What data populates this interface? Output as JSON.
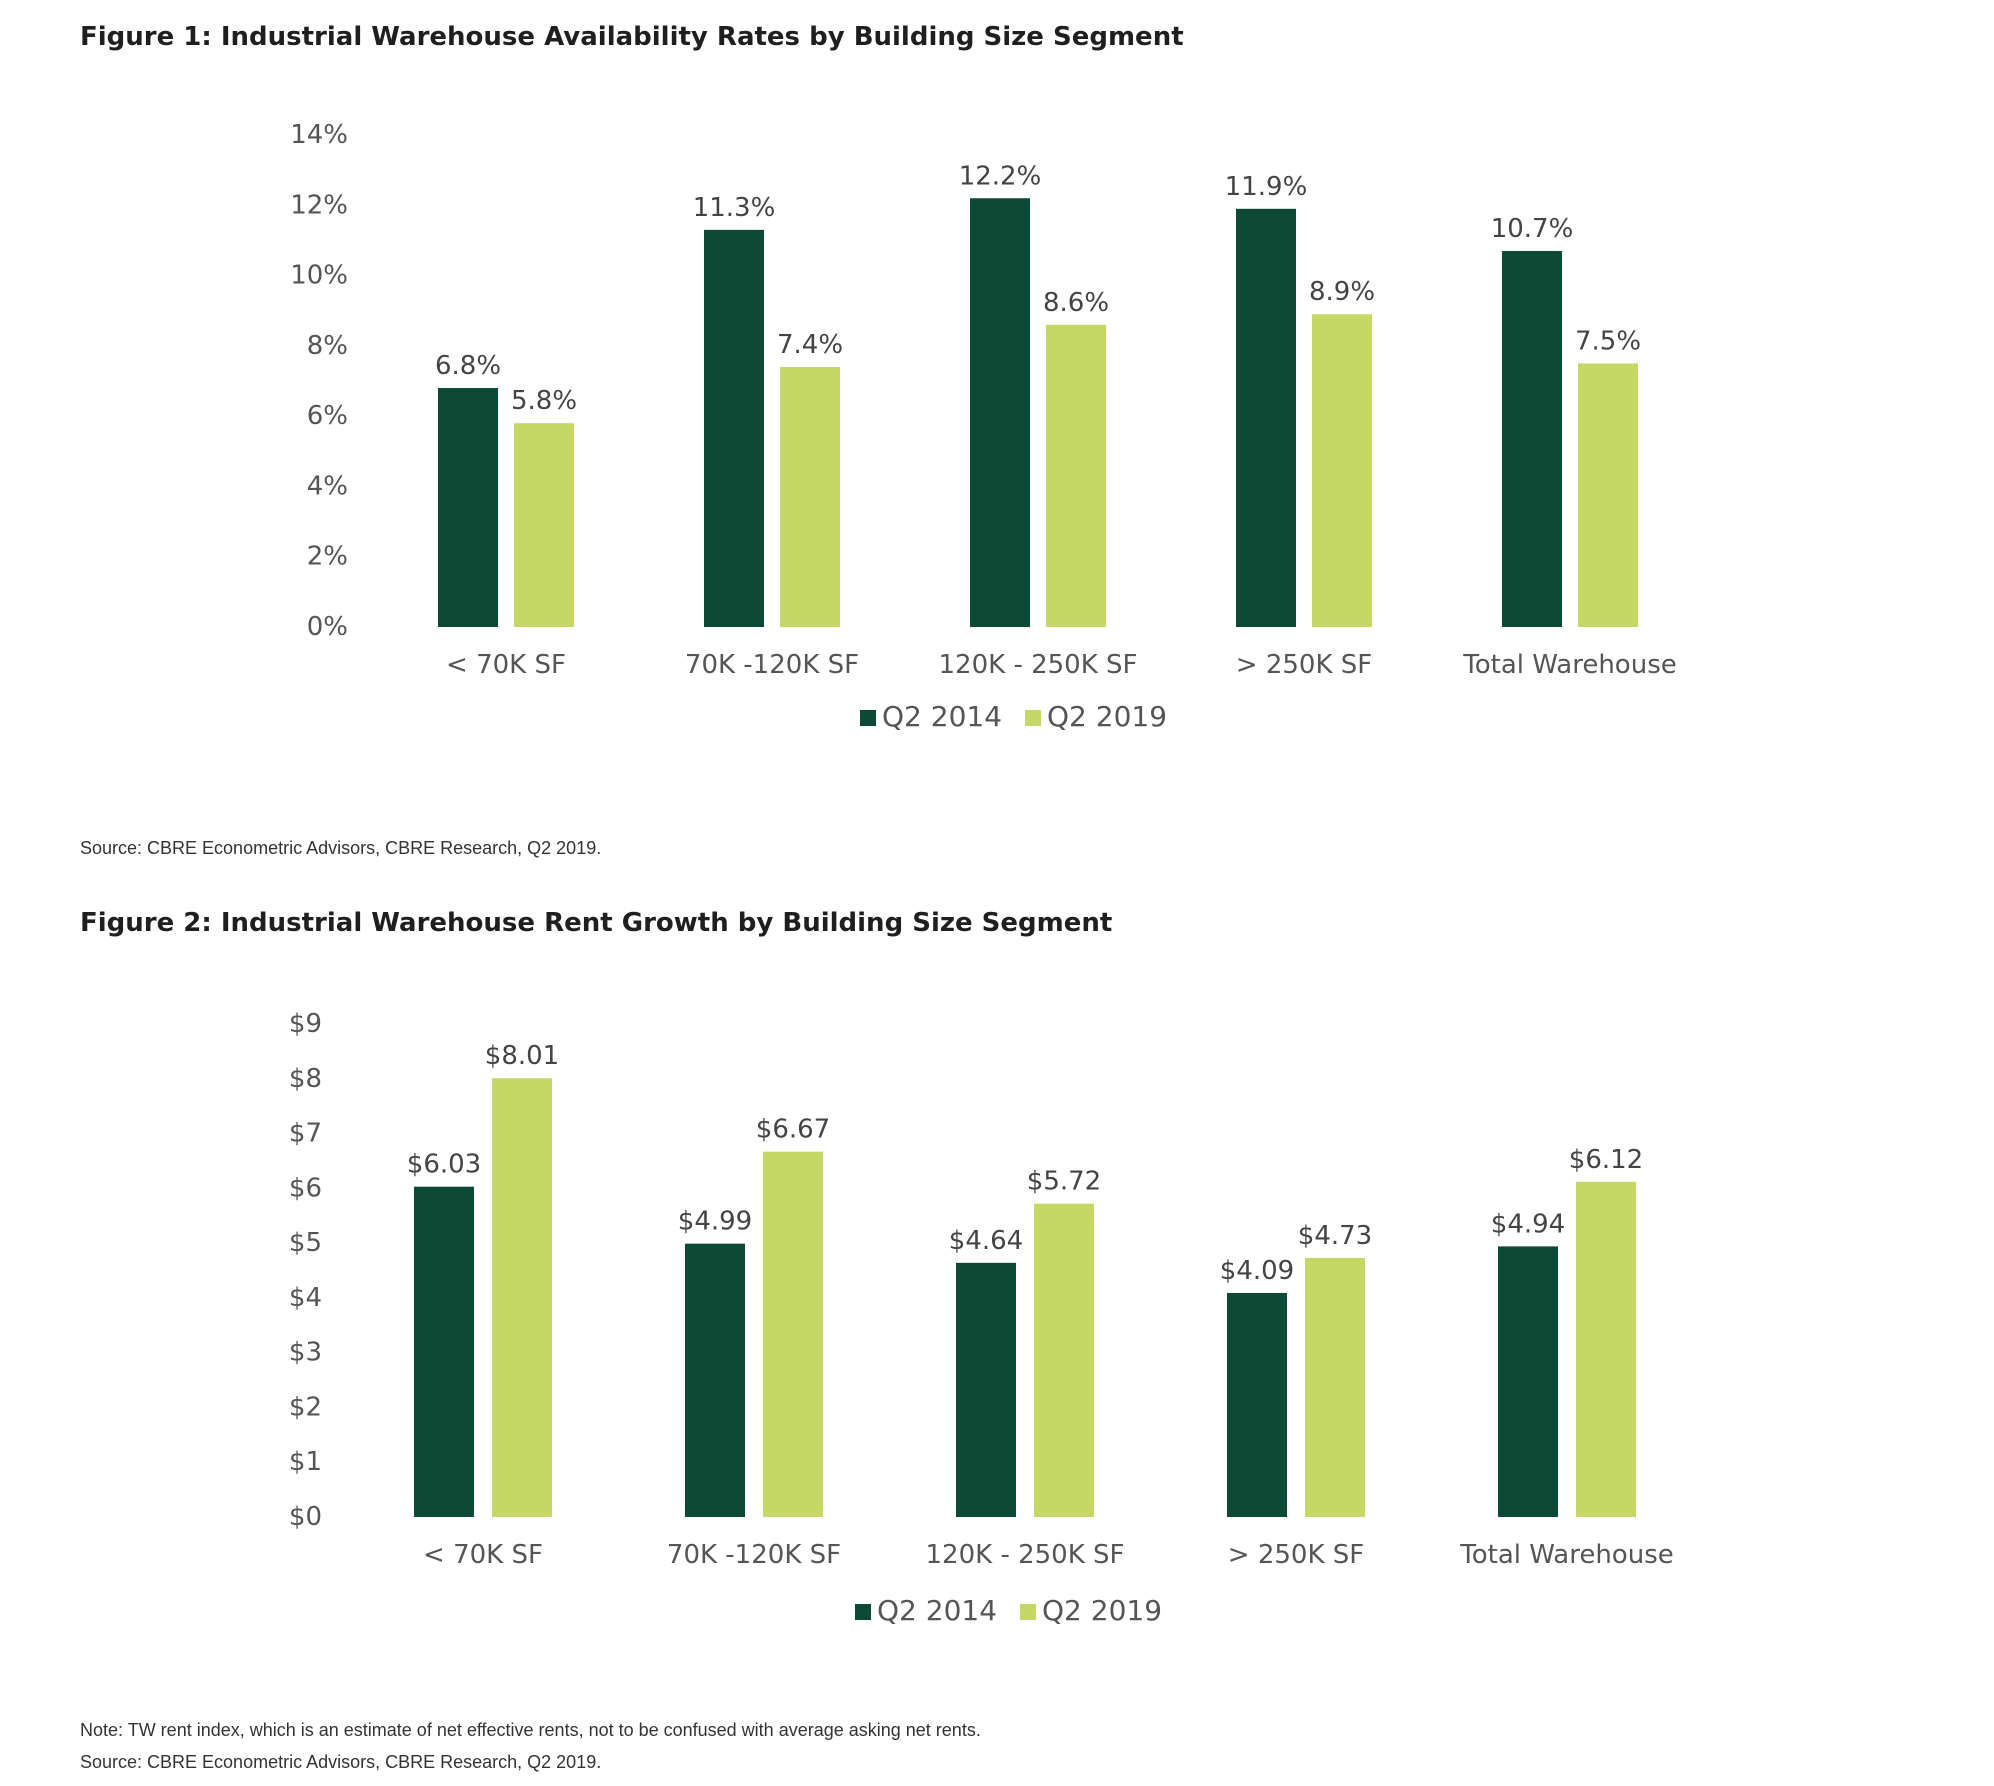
{
  "figures": [
    {
      "title": "Figure 1: Industrial Warehouse Availability Rates by Building Size Segment",
      "notes": [
        "Source: CBRE Econometric Advisors, CBRE Research, Q2 2019."
      ]
    },
    {
      "title": "Figure 2: Industrial Warehouse Rent Growth by Building Size Segment",
      "notes": [
        "Note: TW rent index, which is an estimate of net effective rents, not to be confused with average asking net rents.",
        "Source: CBRE Econometric Advisors, CBRE Research, Q2 2019."
      ]
    }
  ],
  "colors": {
    "q2_2014": "#0d4a35",
    "q2_2019": "#c5d866"
  },
  "chart_data": [
    {
      "type": "bar",
      "title": "Figure 1: Industrial Warehouse Availability Rates by Building Size Segment",
      "categories": [
        "< 70K SF",
        "70K -120K SF",
        "120K - 250K SF",
        "> 250K SF",
        "Total Warehouse"
      ],
      "series": [
        {
          "name": "Q2 2014",
          "values": [
            6.8,
            11.3,
            12.2,
            11.9,
            10.7
          ],
          "labels": [
            "6.8%",
            "11.3%",
            "12.2%",
            "11.9%",
            "10.7%"
          ]
        },
        {
          "name": "Q2 2019",
          "values": [
            5.8,
            7.4,
            8.6,
            8.9,
            7.5
          ],
          "labels": [
            "5.8%",
            "7.4%",
            "8.6%",
            "8.9%",
            "7.5%"
          ]
        }
      ],
      "yticks": [
        "0%",
        "2%",
        "4%",
        "6%",
        "8%",
        "10%",
        "12%",
        "14%"
      ],
      "ylim": [
        0,
        14
      ],
      "ystep": 2,
      "grid": false,
      "legend": "bottom-center"
    },
    {
      "type": "bar",
      "title": "Figure 2: Industrial Warehouse Rent Growth by Building Size Segment",
      "categories": [
        "< 70K SF",
        "70K -120K SF",
        "120K - 250K SF",
        "> 250K SF",
        "Total Warehouse"
      ],
      "series": [
        {
          "name": "Q2 2014",
          "values": [
            6.03,
            4.99,
            4.64,
            4.09,
            4.94
          ],
          "labels": [
            "$6.03",
            "$4.99",
            "$4.64",
            "$4.09",
            "$4.94"
          ]
        },
        {
          "name": "Q2 2019",
          "values": [
            8.01,
            6.67,
            5.72,
            4.73,
            6.12
          ],
          "labels": [
            "$8.01",
            "$6.67",
            "$5.72",
            "$4.73",
            "$6.12"
          ]
        }
      ],
      "yticks": [
        "$0",
        "$1",
        "$2",
        "$3",
        "$4",
        "$5",
        "$6",
        "$7",
        "$8",
        "$9"
      ],
      "ylim": [
        0,
        9
      ],
      "ystep": 1,
      "grid": false,
      "legend": "bottom-center"
    }
  ]
}
